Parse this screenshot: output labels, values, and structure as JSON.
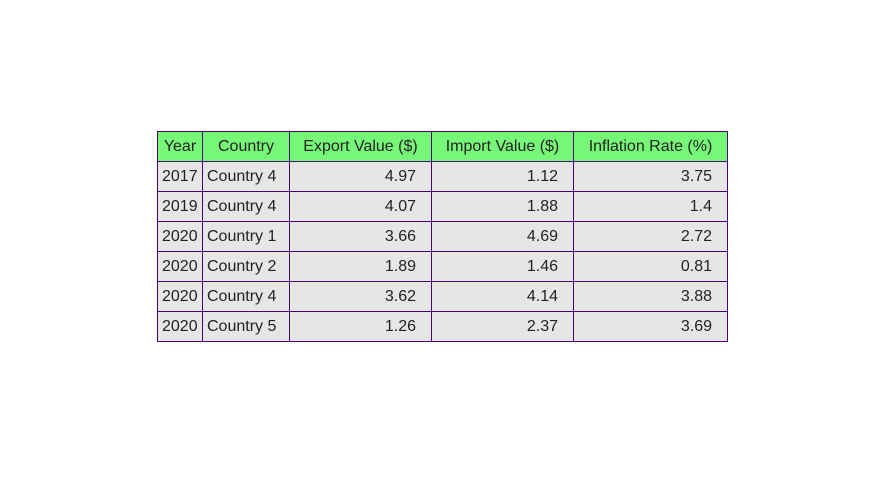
{
  "chart_data": {
    "type": "table",
    "columns": [
      "Year",
      "Country",
      "Export Value ($)",
      "Import Value ($)",
      "Inflation Rate (%)"
    ],
    "rows": [
      [
        "2017",
        "Country 4",
        "4.97",
        "1.12",
        "3.75"
      ],
      [
        "2019",
        "Country 4",
        "4.07",
        "1.88",
        "1.4"
      ],
      [
        "2020",
        "Country 1",
        "3.66",
        "4.69",
        "2.72"
      ],
      [
        "2020",
        "Country 2",
        "1.89",
        "1.46",
        "0.81"
      ],
      [
        "2020",
        "Country 4",
        "3.62",
        "4.14",
        "3.88"
      ],
      [
        "2020",
        "Country 5",
        "1.26",
        "2.37",
        "3.69"
      ]
    ],
    "colors": {
      "header_background": "#77f777",
      "cell_background": "#e6e6e6",
      "border": "#4b0082"
    }
  }
}
